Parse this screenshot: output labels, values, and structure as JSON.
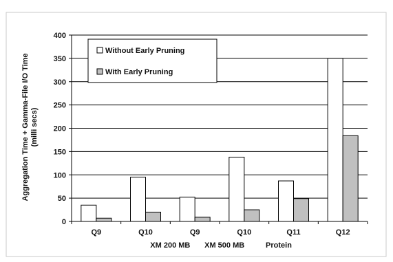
{
  "chart_data": {
    "type": "bar",
    "categories": [
      "Q9",
      "Q10",
      "Q9",
      "Q10",
      "Q11",
      "Q12"
    ],
    "group_labels": [
      "XM 200 MB",
      "XM 500 MB",
      "Protein"
    ],
    "series": [
      {
        "name": "Without Early Pruning",
        "values": [
          35,
          95,
          52,
          138,
          87,
          350
        ],
        "color": "#ffffff"
      },
      {
        "name": "With Early Pruning",
        "values": [
          7,
          20,
          9,
          25,
          49,
          184
        ],
        "color": "#c0c0c0"
      }
    ],
    "ylabel_line1": "Aggregation Time + Gamma-File I/O Time",
    "ylabel_line2": "(milli secs)",
    "ylim": [
      0,
      400
    ],
    "yticks": [
      0,
      50,
      100,
      150,
      200,
      250,
      300,
      350,
      400
    ],
    "grid": true,
    "legend_position": "top-left"
  }
}
